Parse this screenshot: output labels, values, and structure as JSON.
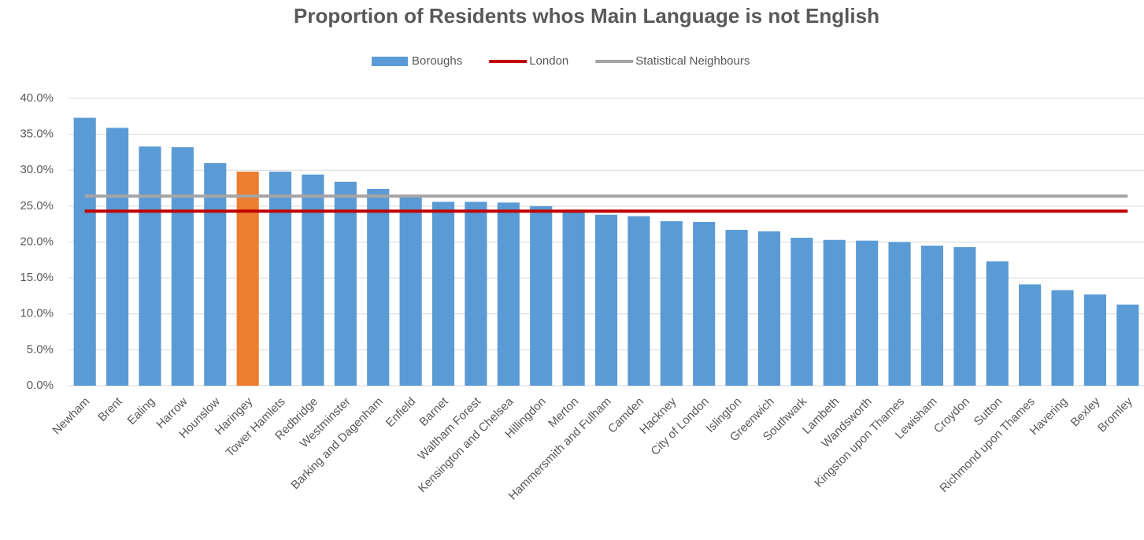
{
  "chart_data": {
    "type": "bar",
    "title": "Proportion of Residents whos Main Language is not English",
    "categories": [
      "Newham",
      "Brent",
      "Ealing",
      "Harrow",
      "Hounslow",
      "Haringey",
      "Tower Hamlets",
      "Redbridge",
      "Westminster",
      "Barking and Dagenham",
      "Enfield",
      "Barnet",
      "Waltham Forest",
      "Kensington and Chelsea",
      "Hillingdon",
      "Merton",
      "Hammersmith and Fulham",
      "Camden",
      "Hackney",
      "City of London",
      "Islington",
      "Greenwich",
      "Southwark",
      "Lambeth",
      "Wandsworth",
      "Kingston upon Thames",
      "Lewisham",
      "Croydon",
      "Sutton",
      "Richmond upon Thames",
      "Havering",
      "Bexley",
      "Bromley"
    ],
    "series": [
      {
        "name": "Boroughs",
        "type": "bar",
        "color": "#5b9bd5",
        "highlight": {
          "category": "Haringey",
          "color": "#ed7d31"
        },
        "values": [
          37.3,
          35.9,
          33.3,
          33.2,
          31.0,
          29.8,
          29.8,
          29.4,
          28.4,
          27.4,
          26.3,
          25.6,
          25.6,
          25.5,
          25.0,
          24.4,
          23.8,
          23.6,
          22.9,
          22.8,
          21.7,
          21.5,
          20.6,
          20.3,
          20.2,
          20.0,
          19.5,
          19.3,
          17.3,
          14.1,
          13.3,
          12.7,
          11.3
        ]
      },
      {
        "name": "London",
        "type": "line",
        "color": "#c00000",
        "values": [
          24.3,
          24.3,
          24.3,
          24.3,
          24.3,
          24.3,
          24.3,
          24.3,
          24.3,
          24.3,
          24.3,
          24.3,
          24.3,
          24.3,
          24.3,
          24.3,
          24.3,
          24.3,
          24.3,
          24.3,
          24.3,
          24.3,
          24.3,
          24.3,
          24.3,
          24.3,
          24.3,
          24.3,
          24.3,
          24.3,
          24.3,
          24.3,
          24.3
        ]
      },
      {
        "name": "Statistical Neighbours",
        "type": "line",
        "color": "#a5a5a5",
        "values": [
          26.4,
          26.4,
          26.4,
          26.4,
          26.4,
          26.4,
          26.4,
          26.4,
          26.4,
          26.4,
          26.4,
          26.4,
          26.4,
          26.4,
          26.4,
          26.4,
          26.4,
          26.4,
          26.4,
          26.4,
          26.4,
          26.4,
          26.4,
          26.4,
          26.4,
          26.4,
          26.4,
          26.4,
          26.4,
          26.4,
          26.4,
          26.4,
          26.4
        ]
      }
    ],
    "ylim": [
      0,
      40
    ],
    "yticks": [
      {
        "value": 0,
        "label": "0.0%"
      },
      {
        "value": 5,
        "label": "5.0%"
      },
      {
        "value": 10,
        "label": "10.0%"
      },
      {
        "value": 15,
        "label": "15.0%"
      },
      {
        "value": 20,
        "label": "20.0%"
      },
      {
        "value": 25,
        "label": "25.0%"
      },
      {
        "value": 30,
        "label": "30.0%"
      },
      {
        "value": 35,
        "label": "35.0%"
      },
      {
        "value": 40,
        "label": "40.0%"
      }
    ],
    "grid": true,
    "legend": "top"
  }
}
